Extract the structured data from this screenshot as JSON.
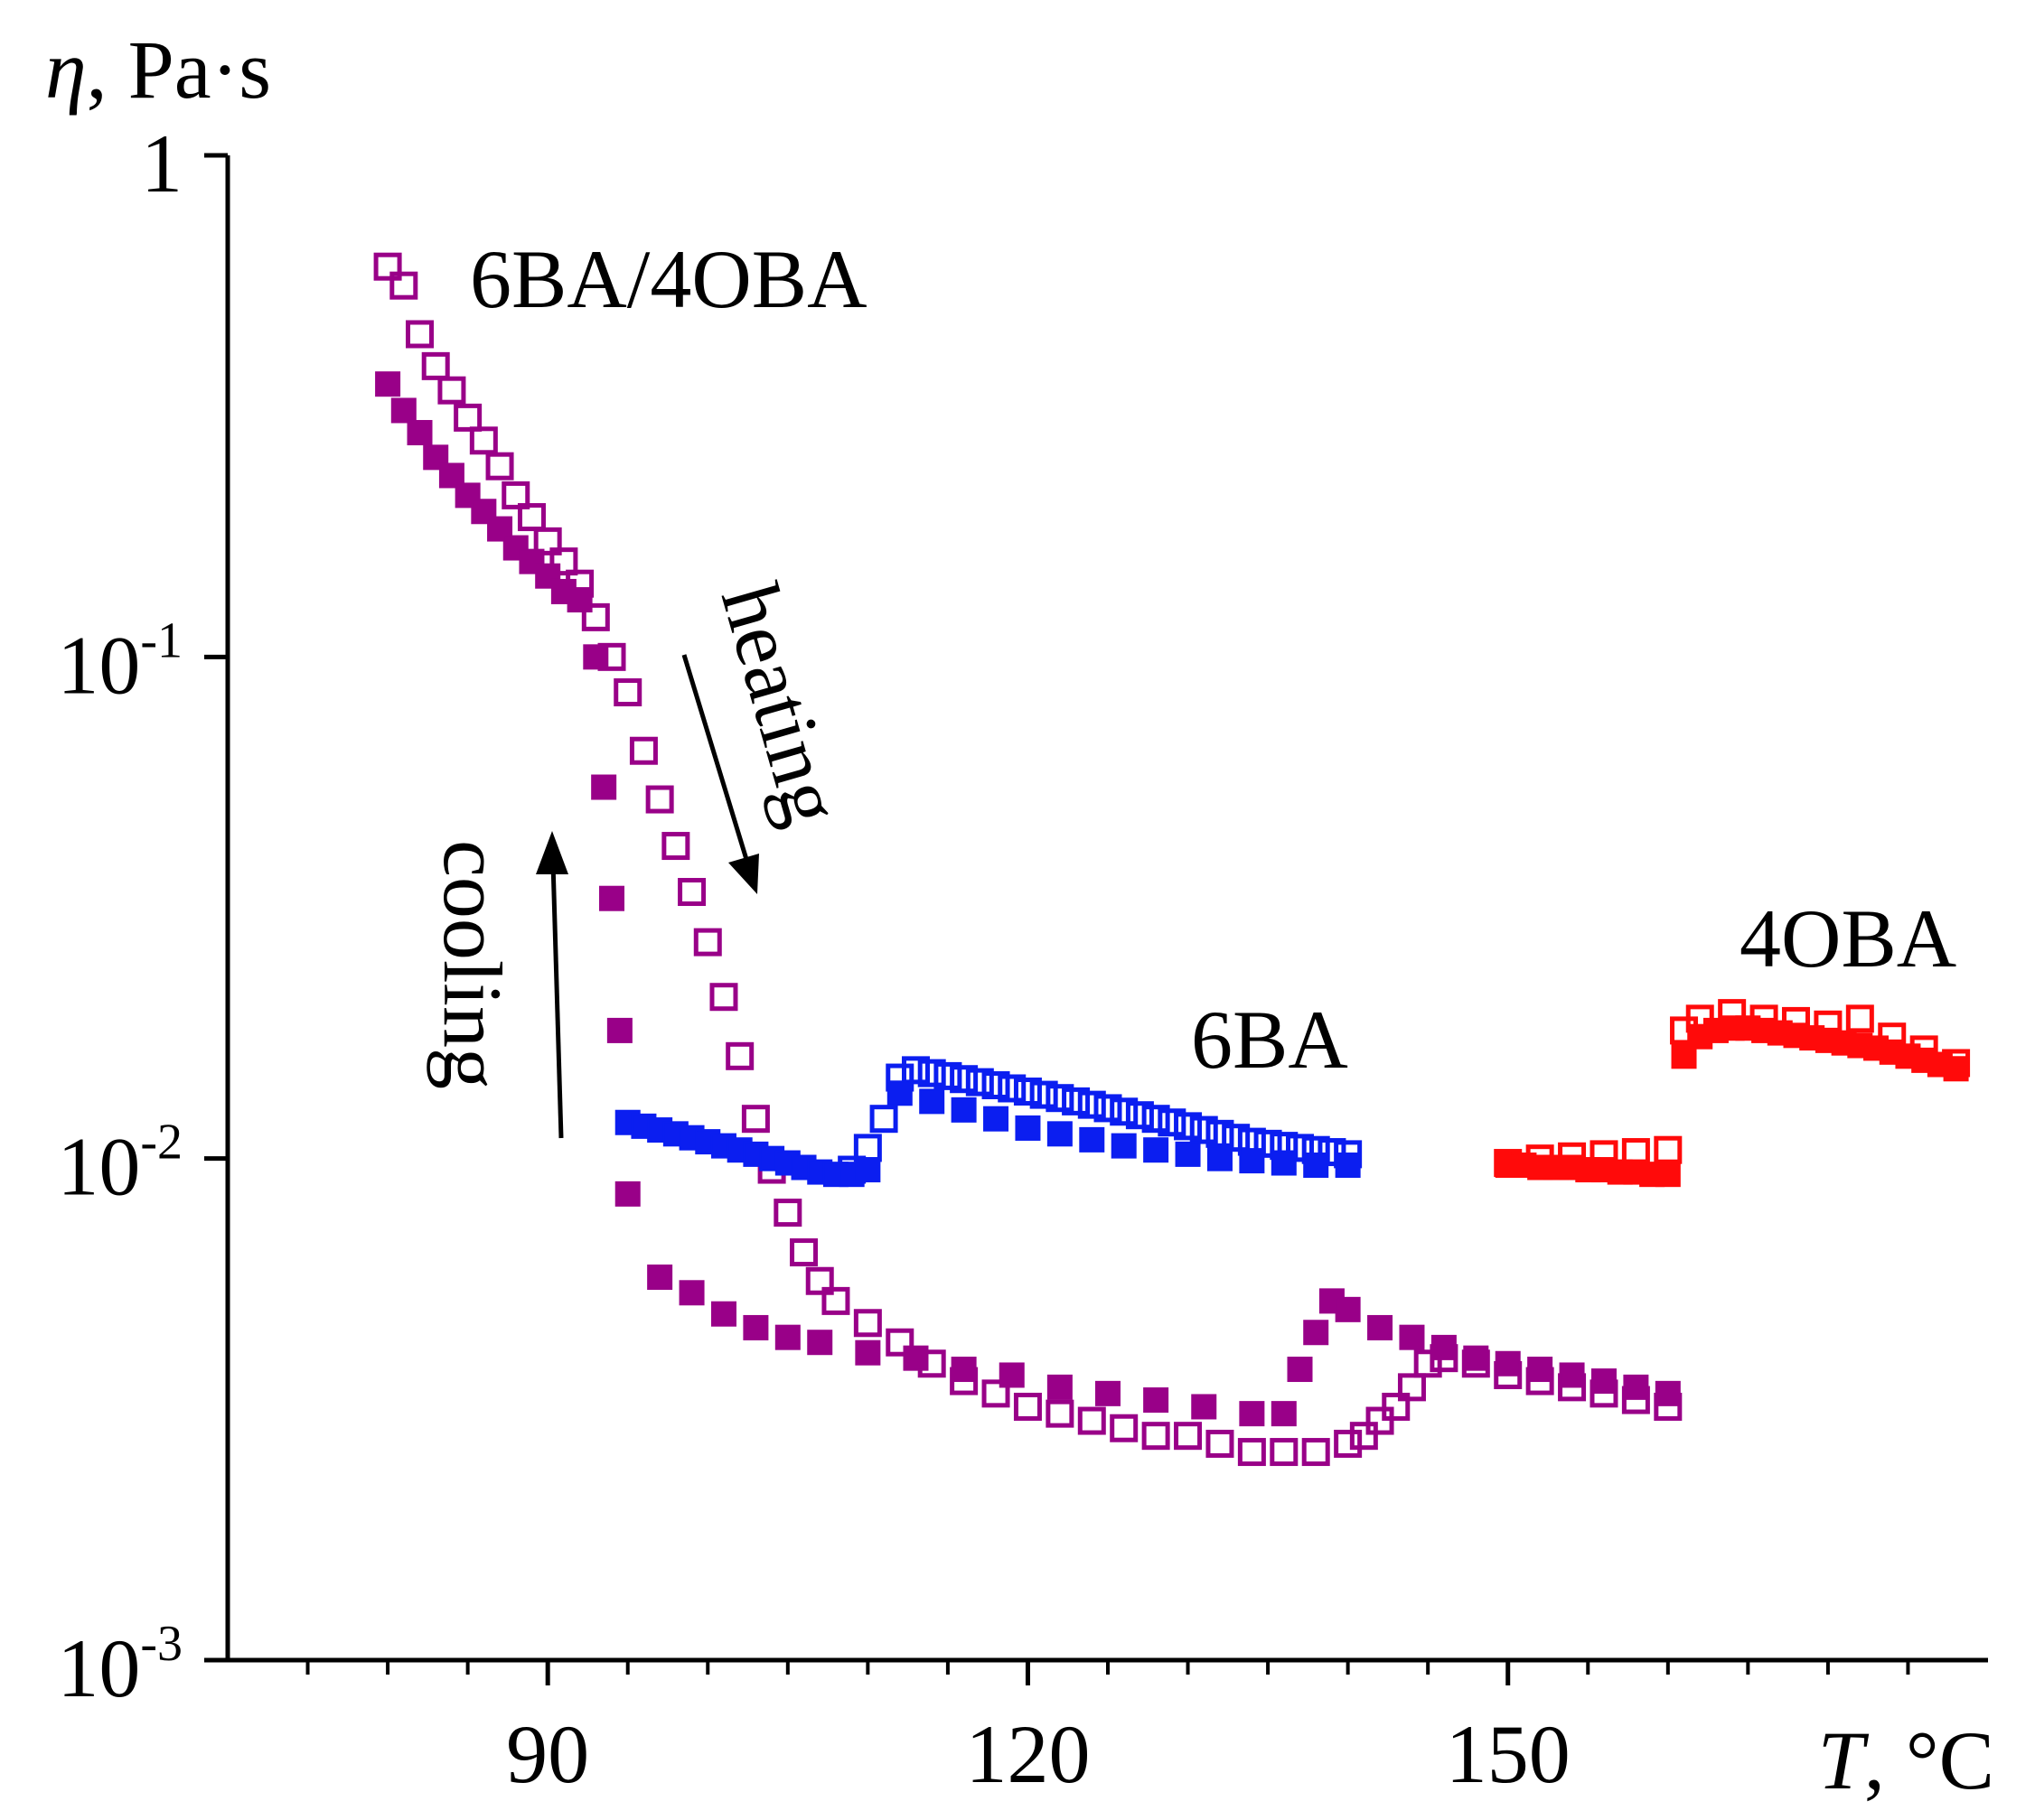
{
  "chart_data": {
    "type": "scatter",
    "title": "",
    "ylabel": {
      "symbol": "η",
      "unit": ", Pa·s"
    },
    "xlabel": {
      "symbol": "T",
      "unit": ", °C"
    },
    "yscale": "log",
    "xlim": [
      70,
      180
    ],
    "ylim": [
      0.001,
      1
    ],
    "xticks": [
      90,
      120,
      150
    ],
    "xtick_labels": [
      "90",
      "120",
      "150"
    ],
    "xminor": [
      75,
      80,
      85,
      95,
      100,
      105,
      110,
      115,
      125,
      130,
      135,
      140,
      145,
      155,
      160,
      165,
      170,
      175
    ],
    "yticks": [
      {
        "value": 1,
        "base": "1",
        "exp": ""
      },
      {
        "value": 0.1,
        "base": "10",
        "exp": "-1"
      },
      {
        "value": 0.01,
        "base": "10",
        "exp": "-2"
      },
      {
        "value": 0.001,
        "base": "10",
        "exp": "-3"
      }
    ],
    "annotations": {
      "heating": "heating",
      "cooling": "cooling"
    },
    "labels": {
      "mix": "6BA/4OBA",
      "six": "6BA",
      "four": "4OBA"
    },
    "colors": {
      "mix": "#990088",
      "six": "#0b1ef0",
      "four": "#ff0a0a"
    },
    "series": [
      {
        "name": "6BA/4OBA heating",
        "color": "#990088",
        "marker": "open-square",
        "x": [
          80,
          81,
          82,
          83,
          84,
          85,
          86,
          87,
          88,
          89,
          90,
          91,
          92,
          93,
          94,
          95,
          96,
          97,
          98,
          99,
          100,
          101,
          102,
          103,
          104,
          105,
          106,
          107,
          108,
          110,
          112,
          114,
          116,
          118,
          120,
          122,
          124,
          126,
          128,
          130,
          132,
          134,
          136,
          138,
          140,
          141,
          142,
          143,
          144,
          145,
          146,
          148,
          150,
          152,
          154,
          156,
          158,
          160
        ],
        "y": [
          0.6,
          0.55,
          0.44,
          0.38,
          0.34,
          0.3,
          0.27,
          0.24,
          0.21,
          0.19,
          0.17,
          0.155,
          0.14,
          0.12,
          0.1,
          0.085,
          0.065,
          0.052,
          0.042,
          0.034,
          0.027,
          0.021,
          0.016,
          0.012,
          0.0095,
          0.0078,
          0.0065,
          0.0057,
          0.0052,
          0.0047,
          0.0043,
          0.0039,
          0.0036,
          0.0034,
          0.0032,
          0.0031,
          0.003,
          0.0029,
          0.0028,
          0.0028,
          0.0027,
          0.0026,
          0.0026,
          0.0026,
          0.0027,
          0.0028,
          0.003,
          0.0032,
          0.0035,
          0.0039,
          0.004,
          0.0039,
          0.0037,
          0.0036,
          0.0035,
          0.0034,
          0.0033,
          0.0032
        ]
      },
      {
        "name": "6BA/4OBA cooling",
        "color": "#990088",
        "marker": "filled-square",
        "x": [
          80,
          81,
          82,
          83,
          84,
          85,
          86,
          87,
          88,
          89,
          90,
          91,
          92,
          93,
          93.5,
          94,
          94.5,
          95,
          97,
          99,
          101,
          103,
          105,
          107,
          110,
          113,
          116,
          119,
          122,
          125,
          128,
          131,
          134,
          136,
          137,
          138,
          139,
          140,
          142,
          144,
          146,
          148,
          150,
          152,
          154,
          156,
          158,
          160
        ],
        "y": [
          0.35,
          0.31,
          0.28,
          0.25,
          0.23,
          0.21,
          0.195,
          0.18,
          0.165,
          0.155,
          0.145,
          0.135,
          0.13,
          0.1,
          0.055,
          0.033,
          0.018,
          0.0085,
          0.0058,
          0.0054,
          0.0049,
          0.0046,
          0.0044,
          0.0043,
          0.0041,
          0.004,
          0.0038,
          0.0037,
          0.0035,
          0.0034,
          0.0033,
          0.0032,
          0.0031,
          0.0031,
          0.0038,
          0.0045,
          0.0052,
          0.005,
          0.0046,
          0.0044,
          0.0042,
          0.004,
          0.0039,
          0.0038,
          0.0037,
          0.0036,
          0.0035,
          0.0034
        ]
      },
      {
        "name": "6BA heating",
        "color": "#0b1ef0",
        "marker": "open-square",
        "x": [
          109,
          110,
          111,
          112,
          113,
          114,
          115,
          116,
          117,
          118,
          119,
          120,
          121,
          122,
          123,
          124,
          125,
          126,
          127,
          128,
          129,
          130,
          131,
          132,
          133,
          134,
          135,
          136,
          137,
          138,
          139,
          140
        ],
        "y": [
          0.0095,
          0.0105,
          0.012,
          0.0145,
          0.015,
          0.0148,
          0.0146,
          0.0144,
          0.0142,
          0.014,
          0.0138,
          0.0136,
          0.0134,
          0.0132,
          0.013,
          0.0128,
          0.0126,
          0.0124,
          0.0122,
          0.012,
          0.0118,
          0.0116,
          0.0114,
          0.0112,
          0.011,
          0.0108,
          0.0107,
          0.0106,
          0.0105,
          0.0104,
          0.0103,
          0.0102
        ]
      },
      {
        "name": "6BA cooling",
        "color": "#0b1ef0",
        "marker": "filled-square",
        "x": [
          95,
          96,
          97,
          98,
          99,
          100,
          101,
          102,
          103,
          104,
          105,
          106,
          107,
          108,
          109,
          110,
          112,
          114,
          116,
          118,
          120,
          122,
          124,
          126,
          128,
          130,
          132,
          134,
          136,
          138,
          140
        ],
        "y": [
          0.0118,
          0.0116,
          0.0114,
          0.0112,
          0.011,
          0.0108,
          0.0106,
          0.0104,
          0.0102,
          0.01,
          0.0098,
          0.0096,
          0.0094,
          0.0093,
          0.0093,
          0.0095,
          0.0135,
          0.013,
          0.0125,
          0.012,
          0.0115,
          0.0112,
          0.0109,
          0.0106,
          0.0104,
          0.0102,
          0.01,
          0.0099,
          0.0098,
          0.0097,
          0.0097
        ]
      },
      {
        "name": "4OBA heating",
        "color": "#ff0a0a",
        "marker": "open-square",
        "x": [
          150,
          152,
          154,
          156,
          158,
          160,
          161,
          162,
          164,
          166,
          168,
          170,
          172,
          174,
          176,
          178
        ],
        "y": [
          0.0098,
          0.01,
          0.0101,
          0.0102,
          0.0103,
          0.0104,
          0.018,
          0.019,
          0.0195,
          0.019,
          0.0188,
          0.0185,
          0.019,
          0.0175,
          0.0165,
          0.0155
        ]
      },
      {
        "name": "4OBA cooling",
        "color": "#ff0a0a",
        "marker": "filled-square",
        "x": [
          150,
          151,
          152,
          153,
          154,
          155,
          156,
          157,
          158,
          159,
          160,
          161,
          162,
          163,
          164,
          165,
          166,
          167,
          168,
          169,
          170,
          171,
          172,
          173,
          174,
          175,
          176,
          177,
          178
        ],
        "y": [
          0.0097,
          0.0097,
          0.0096,
          0.0096,
          0.0096,
          0.0095,
          0.0095,
          0.0094,
          0.0094,
          0.0093,
          0.0093,
          0.016,
          0.0175,
          0.018,
          0.0182,
          0.0182,
          0.018,
          0.0178,
          0.0176,
          0.0174,
          0.0172,
          0.017,
          0.0168,
          0.0166,
          0.0163,
          0.016,
          0.0157,
          0.0154,
          0.0151
        ]
      }
    ]
  }
}
